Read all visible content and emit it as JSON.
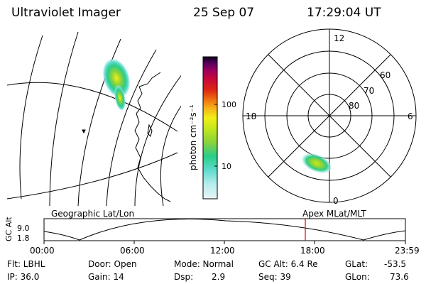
{
  "header": {
    "title": "Ultraviolet Imager",
    "date": "25 Sep 07",
    "time": "17:29:04 UT"
  },
  "colorbar": {
    "unit_label": "photon cm⁻²s⁻¹",
    "ticks": [
      "100",
      "10"
    ],
    "colors": [
      "#e8f4f4",
      "#b8eef0",
      "#60dccc",
      "#2bcc8a",
      "#8ad43a",
      "#c6e81e",
      "#f2ee1a",
      "#f6b01a",
      "#ee7012",
      "#dc2414",
      "#c80a3a",
      "#a0005a",
      "#5e0060",
      "#100020"
    ]
  },
  "polar": {
    "mlt_labels": [
      "12",
      "18",
      "6",
      "0"
    ],
    "lat_labels": [
      "60",
      "70",
      "80"
    ]
  },
  "timeline": {
    "ylabel": "GC Alt",
    "y_ticks": [
      "9.0",
      "1.8"
    ],
    "left_label": "Geographic Lat/Lon",
    "right_label": "Apex MLat/MLT",
    "x_ticks": [
      "00:00",
      "06:00",
      "12:00",
      "18:00",
      "23:59"
    ],
    "marker_color": "#e00000"
  },
  "info": {
    "flt": "Flt: LBHL",
    "ip": "IP: 36.0",
    "door": "Door: Open",
    "gain": "Gain: 14",
    "mode": "Mode: Normal",
    "dsp_label": "Dsp:",
    "dsp_value": "2.9",
    "gcalt": "GC Alt: 6.4 Re",
    "seq": "Seq: 39",
    "glat_label": "GLat:",
    "glat_value": "-53.5",
    "glon_label": "GLon:",
    "glon_value": "73.6"
  }
}
